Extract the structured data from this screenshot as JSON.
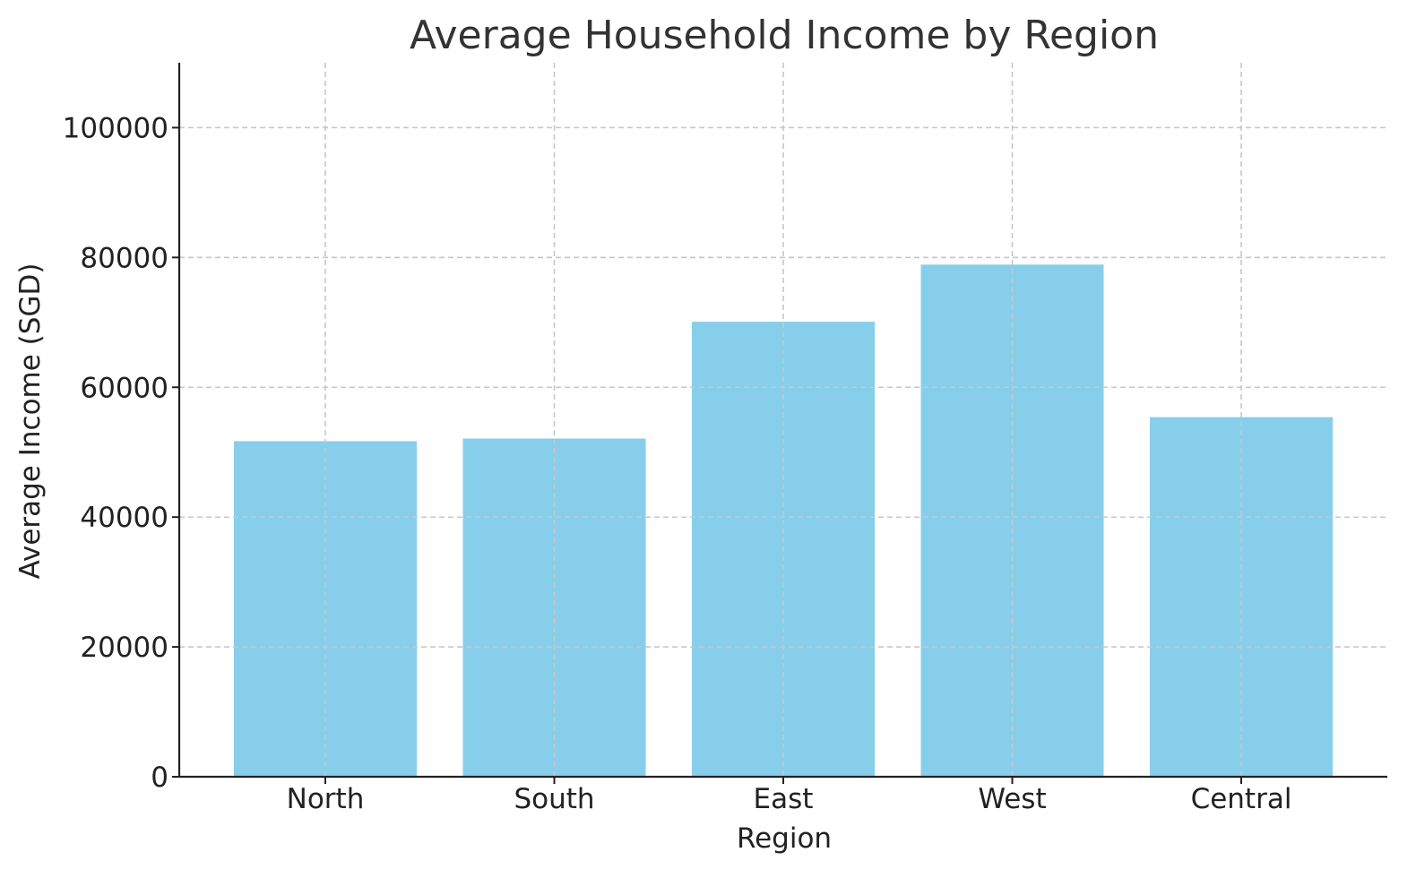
{
  "chart_data": {
    "type": "bar",
    "title": "Average Household Income by Region",
    "xlabel": "Region",
    "ylabel": "Average Income (SGD)",
    "categories": [
      "North",
      "South",
      "East",
      "West",
      "Central"
    ],
    "values": [
      51700,
      52100,
      70100,
      78900,
      55400
    ],
    "ylim": [
      0,
      110000
    ],
    "yticks": [
      0,
      20000,
      40000,
      60000,
      80000,
      100000
    ],
    "ytick_labels": [
      "0",
      "20000",
      "40000",
      "60000",
      "80000",
      "100000"
    ],
    "grid": true,
    "bar_color": "#87CEEB"
  }
}
